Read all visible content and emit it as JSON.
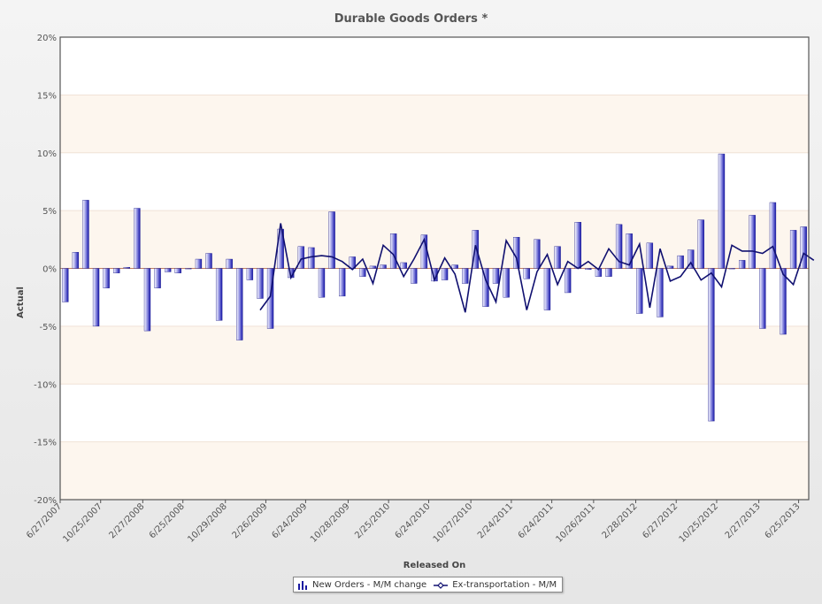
{
  "chart_data": {
    "type": "bar",
    "title": "Durable Goods Orders *",
    "xlabel": "Released On",
    "ylabel": "Actual",
    "ylim": [
      -20,
      20
    ],
    "yticks": [
      "-20%",
      "-15%",
      "-10%",
      "-5%",
      "0%",
      "5%",
      "10%",
      "15%",
      "20%"
    ],
    "xtick_labels": [
      "6/27/2007",
      "10/25/2007",
      "2/27/2008",
      "6/25/2008",
      "10/29/2008",
      "2/26/2009",
      "6/24/2009",
      "10/28/2009",
      "2/25/2010",
      "6/24/2010",
      "10/27/2010",
      "2/24/2011",
      "6/24/2011",
      "10/26/2011",
      "2/28/2012",
      "6/27/2012",
      "10/25/2012",
      "2/27/2013",
      "6/25/2013"
    ],
    "x_range": [
      "6/27/2007",
      "7/25/2013"
    ],
    "grid": "horizontal bands",
    "legend_position": "bottom",
    "series": [
      {
        "name": "New Orders - M/M change",
        "type": "bar",
        "color": "#1010a0",
        "values": [
          -2.9,
          1.4,
          5.9,
          -5.0,
          -1.7,
          -0.4,
          0.1,
          5.2,
          -5.4,
          -1.7,
          -0.3,
          -0.4,
          0.0,
          0.8,
          1.3,
          -4.5,
          0.8,
          -6.2,
          -1.0,
          -2.6,
          -5.2,
          3.4,
          -0.8,
          1.9,
          1.8,
          -2.5,
          4.9,
          -2.4,
          1.0,
          -0.7,
          0.2,
          0.3,
          3.0,
          0.5,
          -1.3,
          2.9,
          -1.1,
          -1.0,
          0.3,
          -1.3,
          3.3,
          -3.3,
          -1.3,
          -2.5,
          2.7,
          -0.9,
          2.5,
          -3.6,
          1.9,
          -2.1,
          4.0,
          -0.1,
          -0.7,
          -0.7,
          3.8,
          3.0,
          -3.9,
          2.2,
          -4.2,
          0.2,
          1.1,
          1.6,
          4.2,
          -13.2,
          9.9,
          0.0,
          0.7,
          4.6,
          -5.2,
          5.7,
          -5.7,
          3.3,
          3.6
        ]
      },
      {
        "name": "Ex-transportation - M/M",
        "type": "line",
        "color": "#101070",
        "start_index": 19,
        "values": [
          -3.6,
          -2.4,
          3.9,
          -0.8,
          0.8,
          1.0,
          1.1,
          1.0,
          0.6,
          -0.1,
          0.8,
          -1.3,
          2.0,
          1.2,
          -0.7,
          0.8,
          2.5,
          -1.0,
          0.9,
          -0.5,
          -3.8,
          2.0,
          -1.0,
          -2.9,
          2.4,
          0.9,
          -3.6,
          -0.3,
          1.2,
          -1.4,
          0.6,
          0.0,
          0.6,
          -0.1,
          1.7,
          0.6,
          0.3,
          2.1,
          -3.4,
          1.7,
          -1.1,
          -0.7,
          0.5,
          -1.0,
          -0.4,
          -1.6,
          2.0,
          1.5,
          1.5,
          1.3,
          1.9,
          -0.5,
          -1.4,
          1.3,
          0.7
        ]
      }
    ]
  },
  "legend": {
    "items": [
      {
        "label": "New Orders - M/M change",
        "icon": "bar-chart-icon"
      },
      {
        "label": "Ex-transportation - M/M",
        "icon": "line-marker-icon"
      }
    ]
  }
}
